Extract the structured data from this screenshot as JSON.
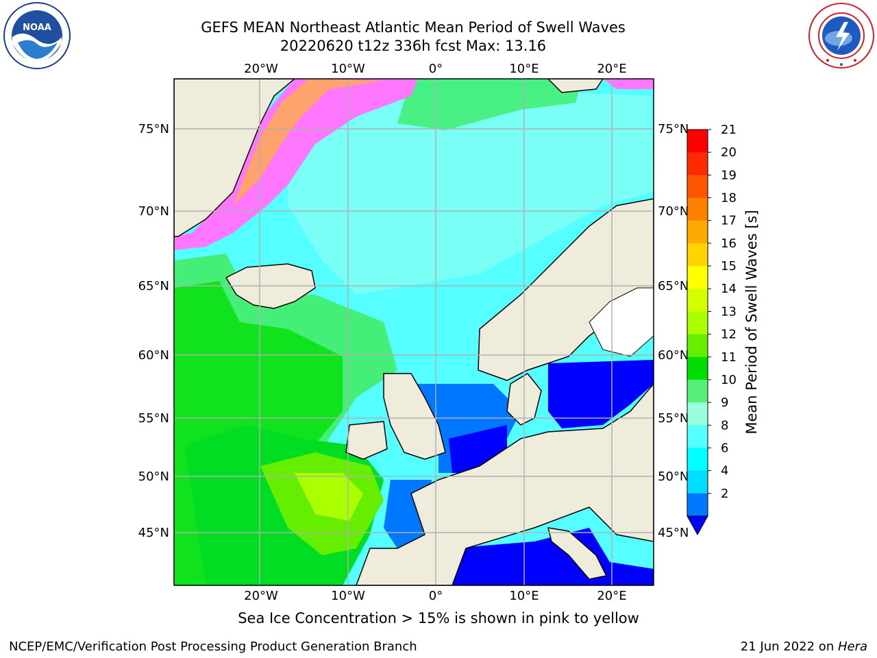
{
  "header": {
    "title_line1": "GEFS MEAN Northeast Atlantic Mean Period of Swell Waves",
    "title_line2": "20220620 t12z 336h fcst   Max: 13.16"
  },
  "logos": {
    "left": "noaa-logo",
    "right": "nws-logo"
  },
  "map": {
    "lon_labels": [
      "20°W",
      "10°W",
      "0°",
      "10°E",
      "20°E"
    ],
    "lat_labels": [
      "75°N",
      "70°N",
      "65°N",
      "60°N",
      "55°N",
      "50°N",
      "45°N"
    ],
    "note": "Sea Ice Concentration > 15% is shown in pink to yellow"
  },
  "colorbar": {
    "title": "Mean Period of Swell Waves [s]",
    "tick_labels": [
      "21",
      "20",
      "19",
      "18",
      "17",
      "16",
      "15",
      "14",
      "13",
      "12",
      "11",
      "10",
      "9",
      "8",
      "6",
      "4",
      "2"
    ],
    "colors_top_to_bottom": [
      "#ff0000",
      "#ff2a00",
      "#ff5500",
      "#ff8000",
      "#ffaa00",
      "#ffd400",
      "#ffff00",
      "#d4ff00",
      "#aaff00",
      "#66ee00",
      "#00dd00",
      "#55ee77",
      "#99ffdd",
      "#55ffff",
      "#00ffff",
      "#00ddff",
      "#0077ff"
    ],
    "extend_color": "#0000ff"
  },
  "colors": {
    "land": "#efecdc",
    "grid": "#b0b0b0"
  },
  "footer": {
    "left": "NCEP/EMC/Verification Post Processing Product Generation Branch",
    "date": "21 Jun 2022 on ",
    "machine": "Hera"
  }
}
